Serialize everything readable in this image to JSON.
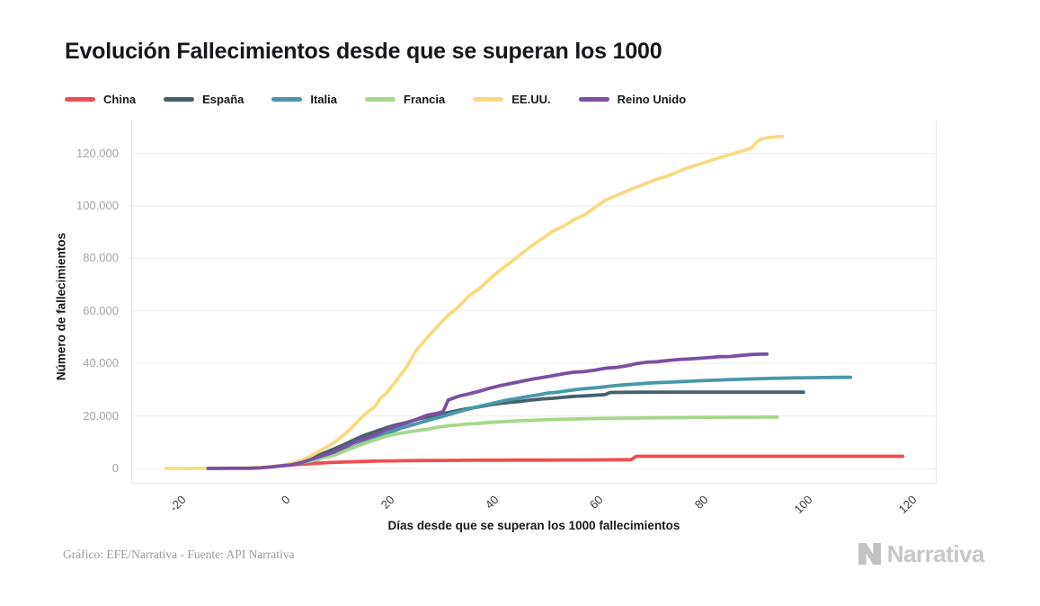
{
  "title": "Evolución Fallecimientos desde que se superan los 1000",
  "caption": "Gráfico: EFE/Narrativa - Fuente: API Narrativa",
  "logo": {
    "text": "Narrativa",
    "mark": "narrativa-n-mark",
    "color": "#c7c7c7"
  },
  "colors": {
    "grid": "#ebebeb",
    "axis_border": "#e3e3e3",
    "y_tick_text": "#a6a6a6",
    "x_tick_text": "#3a3a3a",
    "title_text": "#14181d"
  },
  "chart_data": {
    "type": "line",
    "title": "Evolución Fallecimientos desde que se superan los 1000",
    "xlabel": "Días desde que se superan los 1000 fallecimientos",
    "ylabel": "Número de fallecimientos",
    "xlim": [
      -28.7,
      125.5
    ],
    "ylim": [
      -5800,
      132200
    ],
    "grid": "horizontal",
    "legend_position": "top-left",
    "x_ticks": [
      {
        "label": "-20",
        "value": -20
      },
      {
        "label": "0",
        "value": 0
      },
      {
        "label": "20",
        "value": 20
      },
      {
        "label": "40",
        "value": 40
      },
      {
        "label": "60",
        "value": 60
      },
      {
        "label": "80",
        "value": 80
      },
      {
        "label": "100",
        "value": 100
      },
      {
        "label": "120",
        "value": 120
      }
    ],
    "y_ticks": [
      {
        "label": "0",
        "value": 0
      },
      {
        "label": "20.000",
        "value": 20000
      },
      {
        "label": "40.000",
        "value": 40000
      },
      {
        "label": "60.000",
        "value": 60000
      },
      {
        "label": "80.000",
        "value": 80000
      },
      {
        "label": "100.000",
        "value": 100000
      },
      {
        "label": "120.000",
        "value": 120000
      }
    ],
    "series": [
      {
        "name": "China",
        "color": "#ef4c52",
        "points": [
          [
            0,
            1016
          ],
          [
            3,
            1524
          ],
          [
            6,
            1868
          ],
          [
            9,
            2238
          ],
          [
            12,
            2445
          ],
          [
            15,
            2666
          ],
          [
            18,
            2790
          ],
          [
            21,
            2912
          ],
          [
            24,
            2981
          ],
          [
            27,
            3024
          ],
          [
            30,
            3070
          ],
          [
            33,
            3107
          ],
          [
            36,
            3136
          ],
          [
            39,
            3163
          ],
          [
            42,
            3181
          ],
          [
            45,
            3203
          ],
          [
            48,
            3214
          ],
          [
            51,
            3221
          ],
          [
            54,
            3236
          ],
          [
            57,
            3248
          ],
          [
            60,
            3261
          ],
          [
            63,
            3318
          ],
          [
            66,
            3335
          ],
          [
            67,
            3342
          ],
          [
            68,
            4632
          ],
          [
            72,
            4633
          ],
          [
            78,
            4633
          ],
          [
            84,
            4634
          ],
          [
            90,
            4634
          ],
          [
            96,
            4634
          ],
          [
            102,
            4634
          ],
          [
            108,
            4634
          ],
          [
            114,
            4634
          ],
          [
            119,
            4634
          ]
        ]
      },
      {
        "name": "España",
        "color": "#47606e",
        "points": [
          [
            0,
            1002
          ],
          [
            2,
            1720
          ],
          [
            4,
            2696
          ],
          [
            6,
            4089
          ],
          [
            8,
            5690
          ],
          [
            10,
            7340
          ],
          [
            12,
            9053
          ],
          [
            14,
            10935
          ],
          [
            16,
            12641
          ],
          [
            18,
            14045
          ],
          [
            20,
            15447
          ],
          [
            22,
            16606
          ],
          [
            24,
            17489
          ],
          [
            26,
            18708
          ],
          [
            28,
            19613
          ],
          [
            30,
            20453
          ],
          [
            32,
            21282
          ],
          [
            34,
            22157
          ],
          [
            36,
            22902
          ],
          [
            38,
            23521
          ],
          [
            40,
            24275
          ],
          [
            42,
            24824
          ],
          [
            44,
            25264
          ],
          [
            46,
            25613
          ],
          [
            48,
            26070
          ],
          [
            50,
            26478
          ],
          [
            52,
            26744
          ],
          [
            54,
            27104
          ],
          [
            56,
            27459
          ],
          [
            58,
            27650
          ],
          [
            60,
            27888
          ],
          [
            62,
            28124
          ],
          [
            63,
            28970
          ],
          [
            66,
            29020
          ],
          [
            70,
            29043
          ],
          [
            75,
            29043
          ],
          [
            80,
            29043
          ],
          [
            85,
            29043
          ],
          [
            90,
            29043
          ],
          [
            95,
            29043
          ],
          [
            100,
            29043
          ]
        ]
      },
      {
        "name": "Italia",
        "color": "#4898a7",
        "points": [
          [
            0,
            1016
          ],
          [
            3,
            1809
          ],
          [
            5,
            2503
          ],
          [
            7,
            3405
          ],
          [
            9,
            4825
          ],
          [
            11,
            6077
          ],
          [
            13,
            7503
          ],
          [
            15,
            9134
          ],
          [
            17,
            10779
          ],
          [
            19,
            12428
          ],
          [
            21,
            13915
          ],
          [
            23,
            15362
          ],
          [
            25,
            16523
          ],
          [
            27,
            17669
          ],
          [
            29,
            18849
          ],
          [
            31,
            19899
          ],
          [
            33,
            21067
          ],
          [
            35,
            22170
          ],
          [
            37,
            23227
          ],
          [
            39,
            24114
          ],
          [
            41,
            25085
          ],
          [
            43,
            25969
          ],
          [
            45,
            26644
          ],
          [
            47,
            27359
          ],
          [
            49,
            27967
          ],
          [
            51,
            28710
          ],
          [
            53,
            29079
          ],
          [
            55,
            29684
          ],
          [
            57,
            30201
          ],
          [
            59,
            30560
          ],
          [
            61,
            30911
          ],
          [
            63,
            31368
          ],
          [
            65,
            31763
          ],
          [
            68,
            32169
          ],
          [
            71,
            32616
          ],
          [
            74,
            32877
          ],
          [
            77,
            33142
          ],
          [
            80,
            33415
          ],
          [
            83,
            33601
          ],
          [
            86,
            33846
          ],
          [
            89,
            34043
          ],
          [
            92,
            34223
          ],
          [
            95,
            34371
          ],
          [
            98,
            34514
          ],
          [
            101,
            34561
          ],
          [
            104,
            34657
          ],
          [
            107,
            34708
          ],
          [
            109,
            34744
          ]
        ]
      },
      {
        "name": "Francia",
        "color": "#a6d78d",
        "points": [
          [
            0,
            1100
          ],
          [
            2,
            1696
          ],
          [
            4,
            2314
          ],
          [
            6,
            3024
          ],
          [
            8,
            4032
          ],
          [
            10,
            4948
          ],
          [
            12,
            6507
          ],
          [
            14,
            8078
          ],
          [
            16,
            9588
          ],
          [
            18,
            10869
          ],
          [
            20,
            12210
          ],
          [
            22,
            13197
          ],
          [
            24,
            13832
          ],
          [
            26,
            14393
          ],
          [
            28,
            14967
          ],
          [
            30,
            15729
          ],
          [
            32,
            16237
          ],
          [
            34,
            16642
          ],
          [
            36,
            16970
          ],
          [
            38,
            17167
          ],
          [
            40,
            17583
          ],
          [
            42,
            17801
          ],
          [
            44,
            17983
          ],
          [
            46,
            18195
          ],
          [
            48,
            18355
          ],
          [
            50,
            18506
          ],
          [
            52,
            18639
          ],
          [
            54,
            18746
          ],
          [
            56,
            18839
          ],
          [
            58,
            18919
          ],
          [
            60,
            19021
          ],
          [
            63,
            19098
          ],
          [
            66,
            19178
          ],
          [
            69,
            19248
          ],
          [
            72,
            19323
          ],
          [
            75,
            19374
          ],
          [
            78,
            19415
          ],
          [
            81,
            19456
          ],
          [
            84,
            19494
          ],
          [
            87,
            19527
          ],
          [
            90,
            19555
          ],
          [
            93,
            19579
          ],
          [
            95,
            19592
          ]
        ]
      },
      {
        "name": "EE.UU.",
        "color": "#f8da80",
        "points": [
          [
            -22,
            11
          ],
          [
            -19,
            26
          ],
          [
            -16,
            48
          ],
          [
            -13,
            78
          ],
          [
            -10,
            133
          ],
          [
            -8,
            176
          ],
          [
            -6,
            264
          ],
          [
            -4,
            417
          ],
          [
            -2,
            706
          ],
          [
            0,
            1100
          ],
          [
            2,
            2010
          ],
          [
            4,
            3178
          ],
          [
            6,
            5130
          ],
          [
            8,
            7392
          ],
          [
            10,
            9653
          ],
          [
            12,
            12722
          ],
          [
            14,
            16553
          ],
          [
            16,
            20608
          ],
          [
            18,
            23640
          ],
          [
            19,
            26771
          ],
          [
            20,
            28326
          ],
          [
            22,
            33290
          ],
          [
            24,
            38664
          ],
          [
            26,
            45318
          ],
          [
            28,
            49963
          ],
          [
            30,
            54256
          ],
          [
            32,
            58355
          ],
          [
            34,
            61669
          ],
          [
            36,
            65753
          ],
          [
            38,
            68598
          ],
          [
            40,
            72271
          ],
          [
            42,
            75670
          ],
          [
            44,
            78615
          ],
          [
            46,
            81803
          ],
          [
            48,
            84853
          ],
          [
            50,
            87530
          ],
          [
            52,
            90347
          ],
          [
            54,
            92191
          ],
          [
            56,
            94702
          ],
          [
            58,
            96479
          ],
          [
            60,
            99300
          ],
          [
            62,
            102107
          ],
          [
            64,
            103781
          ],
          [
            66,
            105557
          ],
          [
            68,
            107175
          ],
          [
            70,
            108708
          ],
          [
            72,
            110173
          ],
          [
            74,
            111390
          ],
          [
            76,
            113055
          ],
          [
            78,
            114613
          ],
          [
            80,
            115826
          ],
          [
            82,
            117126
          ],
          [
            84,
            118434
          ],
          [
            86,
            119629
          ],
          [
            88,
            120717
          ],
          [
            90,
            121979
          ],
          [
            91,
            124281
          ],
          [
            92,
            125539
          ],
          [
            93,
            125928
          ],
          [
            94,
            126162
          ],
          [
            95,
            126369
          ],
          [
            96,
            126480
          ]
        ]
      },
      {
        "name": "Reino Unido",
        "color": "#7b4fa3",
        "points": [
          [
            -14,
            21
          ],
          [
            -12,
            35
          ],
          [
            -10,
            55
          ],
          [
            -8,
            71
          ],
          [
            -6,
            104
          ],
          [
            -4,
            233
          ],
          [
            -2,
            578
          ],
          [
            0,
            1019
          ],
          [
            2,
            1408
          ],
          [
            4,
            2352
          ],
          [
            6,
            3605
          ],
          [
            8,
            4934
          ],
          [
            10,
            6159
          ],
          [
            12,
            7978
          ],
          [
            14,
            9875
          ],
          [
            16,
            11329
          ],
          [
            18,
            12868
          ],
          [
            20,
            14576
          ],
          [
            22,
            16060
          ],
          [
            24,
            17337
          ],
          [
            26,
            18738
          ],
          [
            28,
            20319
          ],
          [
            30,
            21092
          ],
          [
            31,
            21678
          ],
          [
            32,
            26097
          ],
          [
            34,
            27510
          ],
          [
            36,
            28446
          ],
          [
            38,
            29427
          ],
          [
            40,
            30615
          ],
          [
            42,
            31587
          ],
          [
            44,
            32375
          ],
          [
            46,
            33186
          ],
          [
            48,
            33998
          ],
          [
            50,
            34636
          ],
          [
            52,
            35341
          ],
          [
            54,
            36042
          ],
          [
            56,
            36675
          ],
          [
            58,
            36914
          ],
          [
            60,
            37460
          ],
          [
            62,
            38161
          ],
          [
            64,
            38489
          ],
          [
            66,
            39045
          ],
          [
            68,
            39904
          ],
          [
            70,
            40465
          ],
          [
            72,
            40680
          ],
          [
            74,
            41128
          ],
          [
            76,
            41481
          ],
          [
            78,
            41698
          ],
          [
            80,
            41969
          ],
          [
            82,
            42288
          ],
          [
            84,
            42589
          ],
          [
            86,
            42647
          ],
          [
            88,
            43081
          ],
          [
            90,
            43414
          ],
          [
            92,
            43550
          ],
          [
            93,
            43575
          ]
        ]
      }
    ]
  }
}
